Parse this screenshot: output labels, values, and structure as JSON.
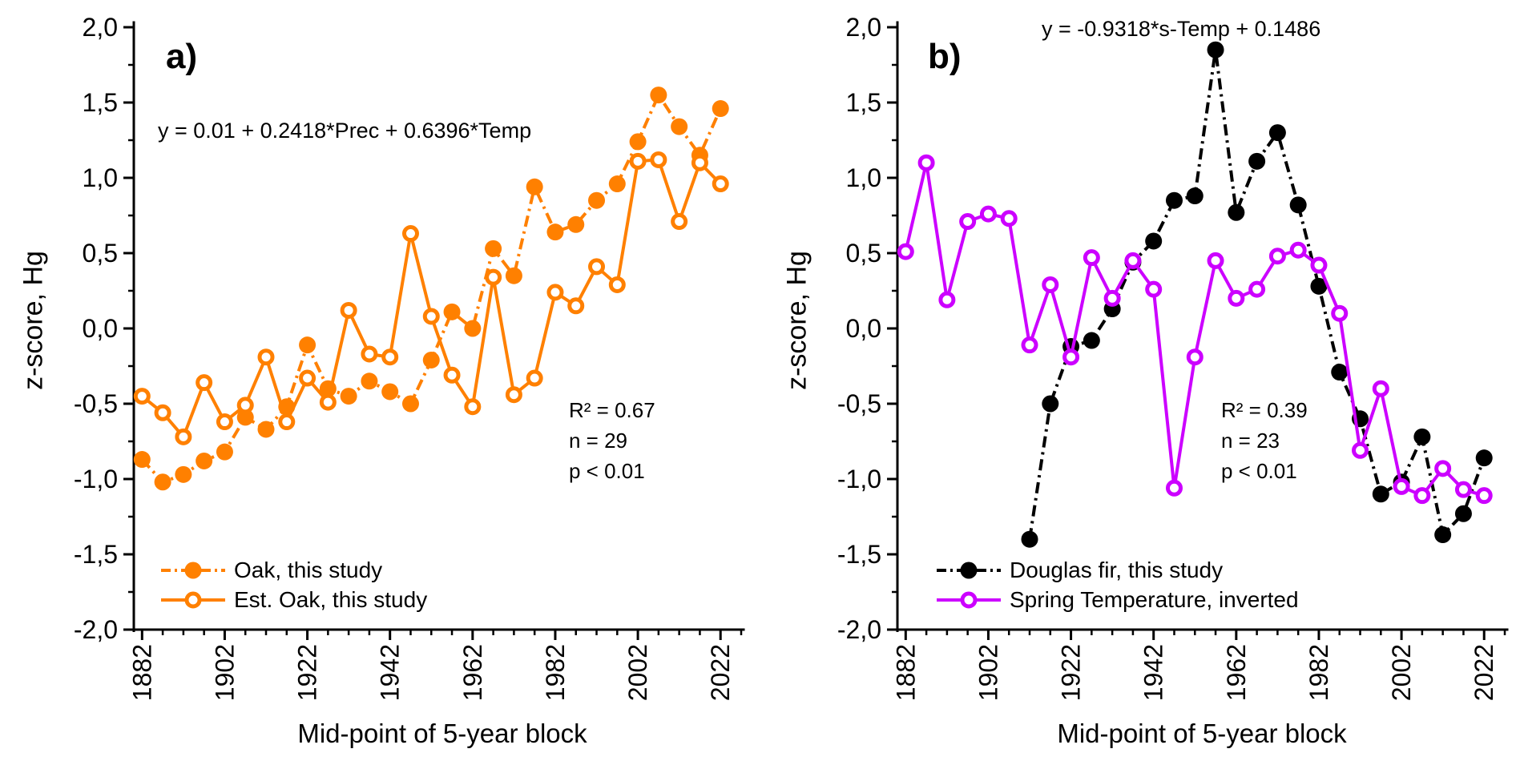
{
  "chart_data": [
    {
      "type": "line",
      "panel_label": "a)",
      "equation": "y = 0.01 + 0.2418*Prec + 0.6396*Temp",
      "stats": [
        "R² = 0.67",
        "n = 29",
        "p < 0.01"
      ],
      "xlabel": "Mid-point of 5-year block",
      "ylabel": "z-score, Hg",
      "xlim": [
        1880,
        2027
      ],
      "ylim": [
        -2,
        2
      ],
      "x_tick_years": [
        1882,
        1902,
        1922,
        1942,
        1962,
        1982,
        2002,
        2022
      ],
      "x_tick_labels": [
        "1882",
        "1902",
        "1922",
        "1942",
        "1962",
        "1982",
        "2002",
        "2022"
      ],
      "x_minor_step": 5,
      "y_tick_values": [
        -2,
        -1.5,
        -1,
        -0.5,
        0,
        0.5,
        1,
        1.5,
        2
      ],
      "y_tick_labels": [
        "-2,0",
        "-1,5",
        "-1,0",
        "-0,5",
        "0,0",
        "0,5",
        "1,0",
        "1,5",
        "2,0"
      ],
      "y_minor_step": 0.25,
      "grid": false,
      "legend_position": "inside-bottom-left",
      "series": [
        {
          "name": "Oak, this study",
          "color": "#FF8000",
          "marker": "filled",
          "line_style": "dash-dot",
          "x": [
            1882,
            1887,
            1892,
            1897,
            1902,
            1907,
            1912,
            1917,
            1922,
            1927,
            1932,
            1937,
            1942,
            1947,
            1952,
            1957,
            1962,
            1967,
            1972,
            1977,
            1982,
            1987,
            1992,
            1997,
            2002,
            2007,
            2012,
            2017,
            2022
          ],
          "values": [
            -0.87,
            -1.02,
            -0.97,
            -0.88,
            -0.82,
            -0.59,
            -0.67,
            -0.52,
            -0.11,
            -0.4,
            -0.45,
            -0.35,
            -0.42,
            -0.5,
            -0.21,
            0.11,
            0.0,
            0.53,
            0.35,
            0.94,
            0.64,
            0.69,
            0.85,
            0.96,
            1.24,
            1.55,
            1.34,
            1.15,
            1.46
          ]
        },
        {
          "name": "Est. Oak, this study",
          "color": "#FF8000",
          "marker": "open",
          "line_style": "solid",
          "x": [
            1882,
            1887,
            1892,
            1897,
            1902,
            1907,
            1912,
            1917,
            1922,
            1927,
            1932,
            1937,
            1942,
            1947,
            1952,
            1957,
            1962,
            1967,
            1972,
            1977,
            1982,
            1987,
            1992,
            1997,
            2002,
            2007,
            2012,
            2017,
            2022
          ],
          "values": [
            -0.45,
            -0.56,
            -0.72,
            -0.36,
            -0.62,
            -0.51,
            -0.19,
            -0.62,
            -0.33,
            -0.49,
            0.12,
            -0.17,
            -0.19,
            0.63,
            0.08,
            -0.31,
            -0.52,
            0.34,
            -0.44,
            -0.33,
            0.24,
            0.15,
            0.41,
            0.29,
            1.11,
            1.12,
            0.71,
            1.1,
            0.96
          ]
        }
      ]
    },
    {
      "type": "line",
      "panel_label": "b)",
      "equation": "y = -0.9318*s-Temp + 0.1486",
      "stats": [
        "R² = 0.39",
        "n = 23",
        "p < 0.01"
      ],
      "xlabel": "Mid-point of 5-year block",
      "ylabel": "z-score, Hg",
      "xlim": [
        1880,
        2027
      ],
      "ylim": [
        -2,
        2
      ],
      "x_tick_years": [
        1882,
        1902,
        1922,
        1942,
        1962,
        1982,
        2002,
        2022
      ],
      "x_tick_labels": [
        "1882",
        "1902",
        "1922",
        "1942",
        "1962",
        "1982",
        "2002",
        "2022"
      ],
      "x_minor_step": 5,
      "y_tick_values": [
        -2,
        -1.5,
        -1,
        -0.5,
        0,
        0.5,
        1,
        1.5,
        2
      ],
      "y_tick_labels": [
        "-2,0",
        "-1,5",
        "-1,0",
        "-0,5",
        "0,0",
        "0,5",
        "1,0",
        "1,5",
        "2,0"
      ],
      "y_minor_step": 0.25,
      "grid": false,
      "legend_position": "inside-bottom-left",
      "series": [
        {
          "name": "Douglas fir, this study",
          "color": "#000000",
          "marker": "filled",
          "line_style": "dash-dot",
          "x": [
            1912,
            1917,
            1922,
            1927,
            1932,
            1937,
            1942,
            1947,
            1952,
            1957,
            1962,
            1967,
            1972,
            1977,
            1982,
            1987,
            1992,
            1997,
            2002,
            2007,
            2012,
            2017,
            2022
          ],
          "values": [
            -1.4,
            -0.5,
            -0.12,
            -0.08,
            0.13,
            0.44,
            0.58,
            0.85,
            0.88,
            1.85,
            0.77,
            1.11,
            1.3,
            0.82,
            0.28,
            -0.29,
            -0.6,
            -1.1,
            -1.02,
            -0.72,
            -1.37,
            -1.23,
            -0.86
          ]
        },
        {
          "name": "Spring Temperature, inverted",
          "color": "#CC00FF",
          "marker": "open",
          "line_style": "solid",
          "x": [
            1882,
            1887,
            1892,
            1897,
            1902,
            1907,
            1912,
            1917,
            1922,
            1927,
            1932,
            1937,
            1942,
            1947,
            1952,
            1957,
            1962,
            1967,
            1972,
            1977,
            1982,
            1987,
            1992,
            1997,
            2002,
            2007,
            2012,
            2017,
            2022
          ],
          "values": [
            0.51,
            1.1,
            0.19,
            0.71,
            0.76,
            0.73,
            -0.11,
            0.29,
            -0.19,
            0.47,
            0.2,
            0.45,
            0.26,
            -1.06,
            -0.19,
            0.45,
            0.2,
            0.26,
            0.48,
            0.52,
            0.42,
            0.1,
            -0.81,
            -0.4,
            -1.05,
            -1.11,
            -0.93,
            -1.07,
            -1.11
          ]
        }
      ]
    }
  ]
}
